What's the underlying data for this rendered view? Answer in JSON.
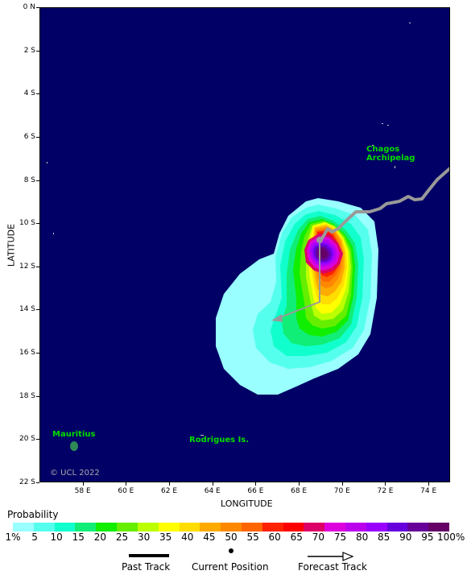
{
  "map": {
    "lat_labels": [
      "0 N",
      "2 S",
      "4 S",
      "6 S",
      "8 S",
      "10 S",
      "12 S",
      "14 S",
      "16 S",
      "18 S",
      "20 S",
      "22 S"
    ],
    "lon_labels": [
      "58 E",
      "60 E",
      "62 E",
      "64 E",
      "66 E",
      "68 E",
      "70 E",
      "72 E",
      "74 E"
    ],
    "lat_axis_title": "LATITUDE",
    "lon_axis_title": "LONGITUDE",
    "places": {
      "chagos": "Chagos Archipelag",
      "mauritius": "Mauritius",
      "rodrigues": "Rodrigues Is."
    },
    "copyright": "© UCL 2022",
    "colors": {
      "ocean": "#000066",
      "land": "#2e8b57",
      "place_label": "#00dd00",
      "track": "#999999"
    }
  },
  "legend": {
    "title": "Probability",
    "scale_labels": [
      "1%",
      "5",
      "10",
      "15",
      "20",
      "25",
      "30",
      "35",
      "40",
      "45",
      "50",
      "55",
      "60",
      "65",
      "70",
      "75",
      "80",
      "85",
      "90",
      "95",
      "100%"
    ],
    "scale_colors": [
      "#99ffff",
      "#55ffee",
      "#11ffcc",
      "#11ee77",
      "#11ee00",
      "#66ee00",
      "#bbff00",
      "#ffff00",
      "#ffdd00",
      "#ffaa00",
      "#ff8800",
      "#ff6600",
      "#ff2200",
      "#ff0000",
      "#dd0066",
      "#dd00dd",
      "#bb00ee",
      "#9900ff",
      "#6600dd",
      "#660099",
      "#660066"
    ],
    "past_track": "Past Track",
    "current_position": "Current Position",
    "forecast_track": "Forecast Track"
  }
}
